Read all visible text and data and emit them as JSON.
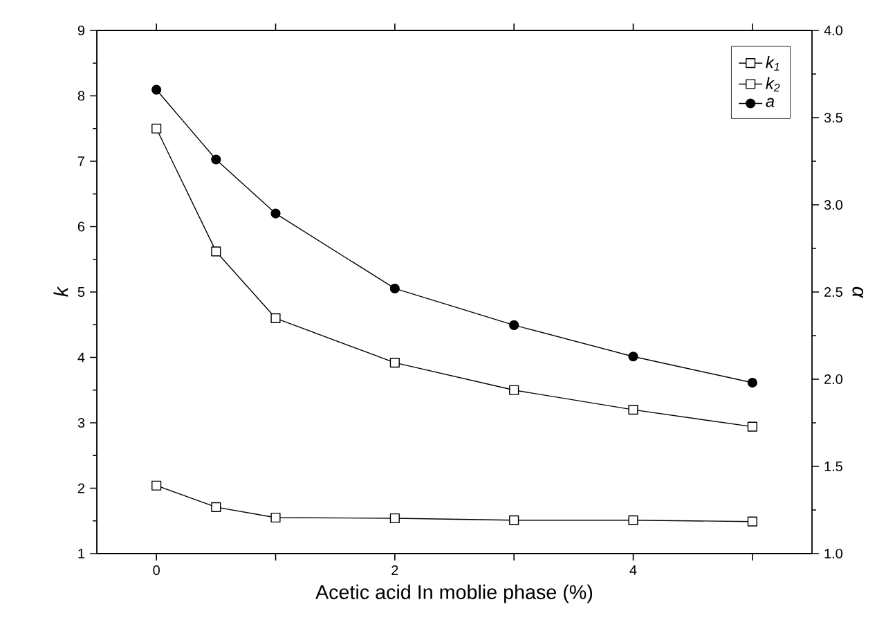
{
  "chart_data": {
    "type": "line",
    "xlabel": "Acetic acid In moblie phase (%)",
    "ylabel": "k",
    "y2label": "α",
    "x": [
      0,
      0.5,
      1,
      2,
      3,
      4,
      5
    ],
    "series": [
      {
        "name": "k$_{1}$",
        "color": "#000000",
        "marker": "square",
        "values": [
          2.04,
          1.71,
          1.55,
          1.54,
          1.51,
          1.51,
          1.49
        ]
      },
      {
        "name": "k$_{2}$",
        "color": "#000000",
        "marker": "square",
        "values": [
          7.5,
          5.62,
          4.6,
          3.92,
          3.5,
          3.2,
          2.94
        ]
      },
      {
        "name": "a",
        "color": "#000000",
        "marker": "circle",
        "axis": "y2",
        "values": [
          3.66,
          3.26,
          2.95,
          2.52,
          2.31,
          2.13,
          1.98
        ]
      }
    ],
    "xlim": [
      -0.5,
      5.5
    ],
    "xticks": [
      0,
      {
        "value": 1,
        "label": null
      },
      2,
      {
        "value": 3,
        "label": null
      },
      4,
      {
        "value": 5,
        "label": null
      }
    ],
    "ylim": [
      1,
      9
    ],
    "yticks": [
      1,
      2,
      3,
      4,
      5,
      6,
      7,
      8,
      9
    ],
    "y2lim": [
      1.0,
      4.0
    ],
    "y2ticks": [
      {
        "value": 1.0,
        "label": "1.0"
      },
      {
        "value": 1.5,
        "label": "1.5"
      },
      {
        "value": 2.0,
        "label": "2.0"
      },
      {
        "value": 2.5,
        "label": "2.5"
      },
      {
        "value": 3.0,
        "label": "3.0"
      },
      {
        "value": 3.5,
        "label": "3.5"
      },
      {
        "value": 4.0,
        "label": "4.0"
      }
    ],
    "legend": "top right",
    "grid": false,
    "line_style": "solid"
  }
}
